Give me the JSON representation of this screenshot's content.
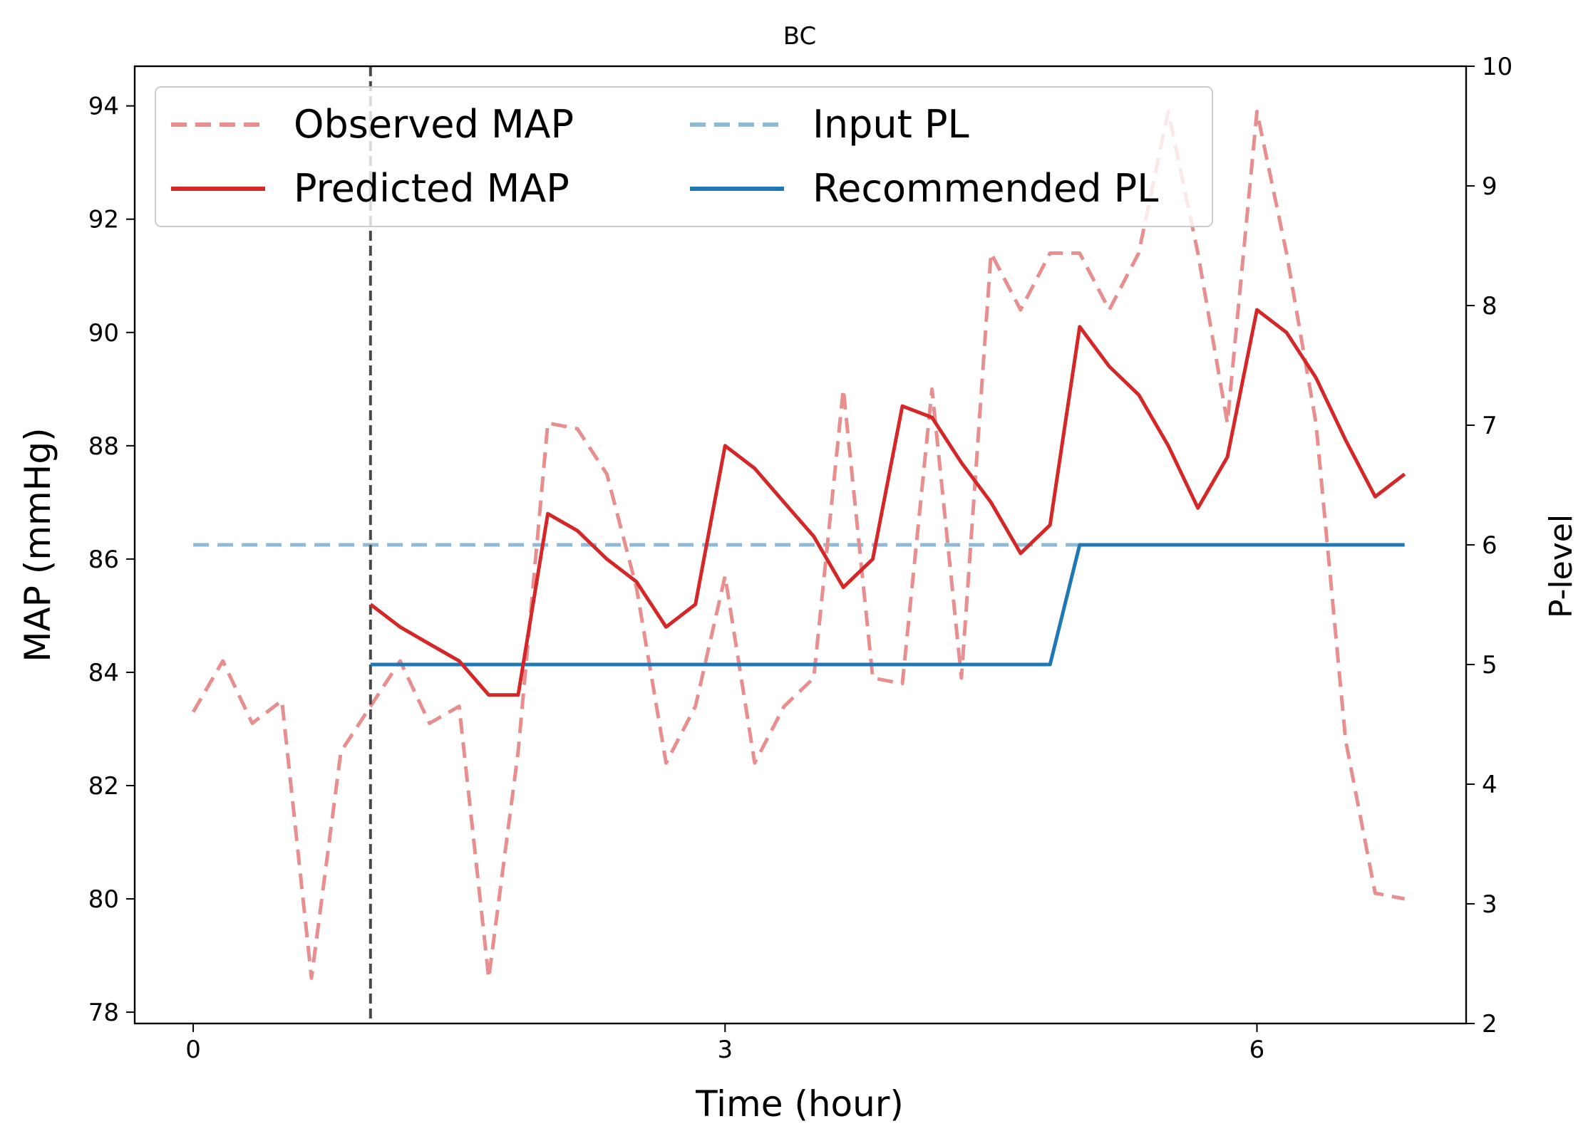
{
  "chart_data": {
    "type": "line",
    "title": "BC",
    "xlabel": "Time (hour)",
    "ylabel": "MAP (mmHg)",
    "y2label": "P-level",
    "xlim": [
      -0.33,
      7.18
    ],
    "ylim": [
      77.8,
      94.7
    ],
    "y2lim": [
      2,
      10
    ],
    "xticks": [
      0,
      3,
      6
    ],
    "yticks": [
      78,
      80,
      82,
      84,
      86,
      88,
      90,
      92,
      94
    ],
    "y2ticks": [
      2,
      3,
      4,
      5,
      6,
      7,
      8,
      9,
      10
    ],
    "vline_x": 1.0,
    "legend_position": "upper-left",
    "legend_columns": 2,
    "colors": {
      "observed_map": "#e88e8f",
      "predicted_map": "#d62728",
      "input_pl": "#8fbad6",
      "recommended_pl": "#1f77b4",
      "vline": "#4a4a4a"
    },
    "series": [
      {
        "name": "Observed MAP",
        "axis": "left",
        "style": "dashed",
        "x": [
          0,
          0.167,
          0.333,
          0.5,
          0.667,
          0.833,
          1.0,
          1.167,
          1.333,
          1.5,
          1.667,
          1.833,
          2.0,
          2.167,
          2.333,
          2.5,
          2.667,
          2.833,
          3.0,
          3.167,
          3.333,
          3.5,
          3.667,
          3.833,
          4.0,
          4.167,
          4.333,
          4.5,
          4.667,
          4.833,
          5.0,
          5.167,
          5.333,
          5.5,
          5.667,
          5.833,
          6.0,
          6.167,
          6.333,
          6.5,
          6.667,
          6.833
        ],
        "values": [
          83.3,
          84.2,
          83.1,
          83.5,
          78.6,
          82.6,
          83.4,
          84.2,
          83.1,
          83.4,
          78.6,
          82.6,
          88.4,
          88.3,
          87.5,
          85.5,
          82.4,
          83.4,
          85.7,
          82.4,
          83.4,
          83.9,
          89.0,
          83.9,
          83.8,
          89.0,
          83.9,
          91.4,
          90.4,
          91.4,
          91.4,
          90.4,
          91.4,
          93.9,
          91.4,
          88.4,
          93.9,
          91.4,
          88.4,
          82.8,
          80.1,
          80.0
        ]
      },
      {
        "name": "Predicted MAP",
        "axis": "left",
        "style": "solid",
        "x": [
          1.0,
          1.167,
          1.333,
          1.5,
          1.667,
          1.833,
          2.0,
          2.167,
          2.333,
          2.5,
          2.667,
          2.833,
          3.0,
          3.167,
          3.333,
          3.5,
          3.667,
          3.833,
          4.0,
          4.167,
          4.333,
          4.5,
          4.667,
          4.833,
          5.0,
          5.167,
          5.333,
          5.5,
          5.667,
          5.833,
          6.0,
          6.167,
          6.333,
          6.5,
          6.667,
          6.833
        ],
        "values": [
          85.2,
          84.8,
          84.5,
          84.2,
          83.6,
          83.6,
          86.8,
          86.5,
          86.0,
          85.6,
          84.8,
          85.2,
          88.0,
          87.6,
          87.0,
          86.4,
          85.5,
          86.0,
          88.7,
          88.5,
          87.7,
          87.0,
          86.1,
          86.6,
          90.1,
          89.4,
          88.9,
          88.0,
          86.9,
          87.8,
          90.4,
          90.0,
          89.2,
          88.1,
          87.1,
          87.5
        ]
      },
      {
        "name": "Input PL",
        "axis": "right",
        "style": "dashed",
        "x": [
          0,
          6.833
        ],
        "values": [
          6,
          6
        ]
      },
      {
        "name": "Recommended PL",
        "axis": "right",
        "style": "solid",
        "x": [
          1.0,
          4.833,
          5.0,
          6.833
        ],
        "values": [
          5,
          5,
          6,
          6
        ]
      }
    ]
  }
}
